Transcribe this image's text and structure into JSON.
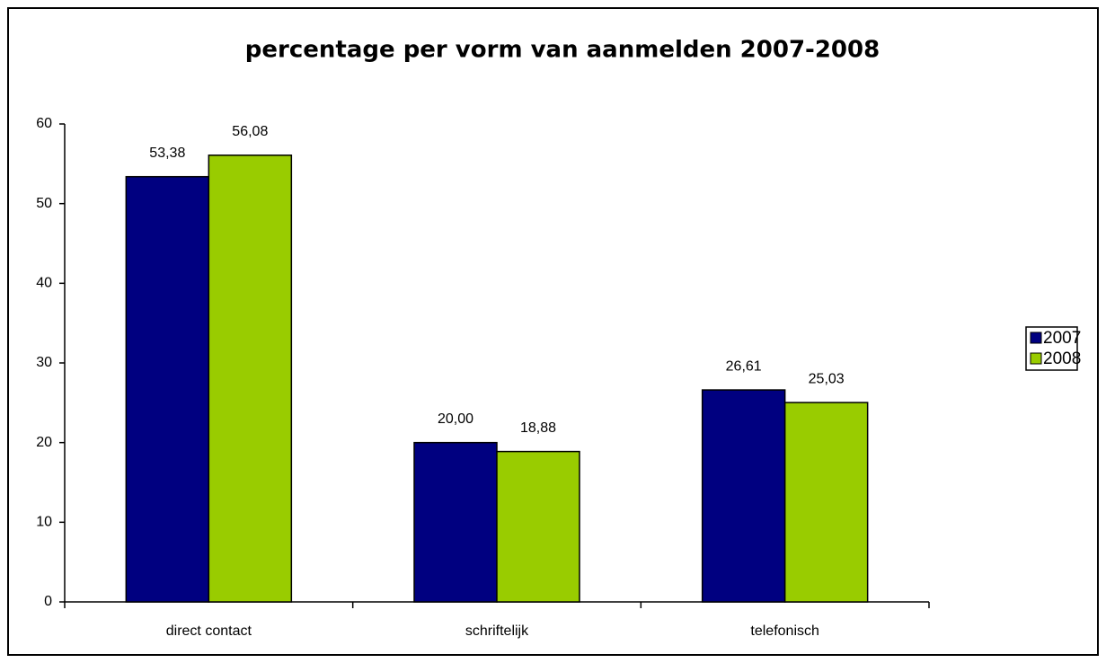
{
  "chart_data": {
    "type": "bar",
    "title": "percentage per vorm van aanmelden  2007-2008",
    "categories": [
      "direct contact",
      "schriftelijk",
      "telefonisch"
    ],
    "series": [
      {
        "name": "2007",
        "color": "#000080",
        "values": [
          53.38,
          20.0,
          26.61
        ],
        "value_labels": [
          "53,38",
          "20,00",
          "26,61"
        ]
      },
      {
        "name": "2008",
        "color": "#99cc00",
        "values": [
          56.08,
          18.88,
          25.03
        ],
        "value_labels": [
          "56,08",
          "18,88",
          "25,03"
        ]
      }
    ],
    "ylim": [
      0,
      60
    ],
    "yticks": [
      0,
      10,
      20,
      30,
      40,
      50,
      60
    ],
    "grid": false,
    "legend": "right"
  }
}
